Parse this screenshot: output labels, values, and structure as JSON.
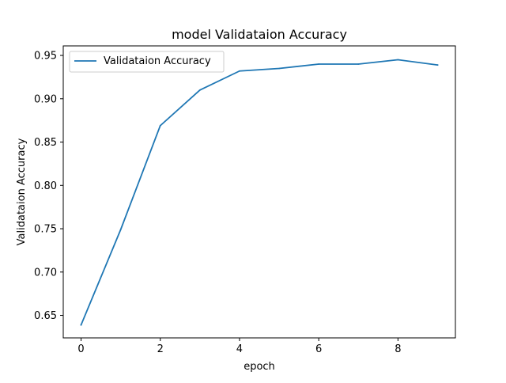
{
  "chart_data": {
    "type": "line",
    "title": "model Validataion Accuracy",
    "xlabel": "epoch",
    "ylabel": "Validataion Accuracy",
    "xlim": [
      -0.45,
      9.45
    ],
    "ylim": [
      0.624,
      0.961
    ],
    "xticks": [
      0,
      2,
      4,
      6,
      8
    ],
    "xtick_labels": [
      "0",
      "2",
      "4",
      "6",
      "8"
    ],
    "yticks": [
      0.65,
      0.7,
      0.75,
      0.8,
      0.85,
      0.9,
      0.95
    ],
    "ytick_labels": [
      "0.65",
      "0.70",
      "0.75",
      "0.80",
      "0.85",
      "0.90",
      "0.95"
    ],
    "grid": false,
    "legend_position": "upper-left",
    "series": [
      {
        "name": "Validataion Accuracy",
        "color": "#1f77b4",
        "x": [
          0,
          1,
          2,
          3,
          4,
          5,
          6,
          7,
          8,
          9
        ],
        "y": [
          0.639,
          0.749,
          0.869,
          0.91,
          0.932,
          0.935,
          0.94,
          0.94,
          0.945,
          0.939
        ]
      }
    ]
  }
}
